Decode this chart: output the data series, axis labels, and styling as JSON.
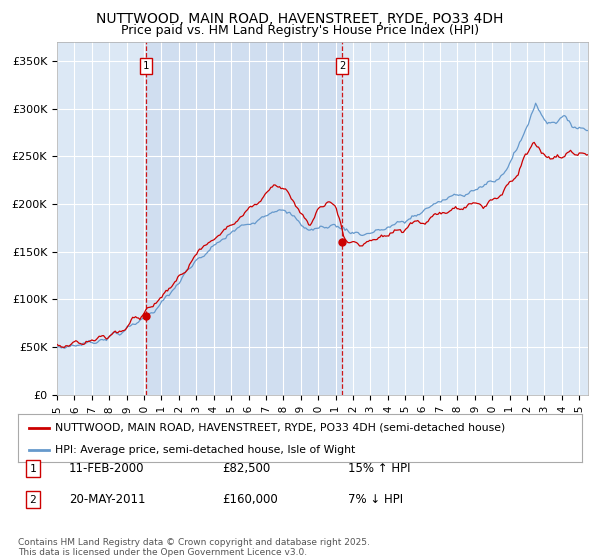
{
  "title": "NUTTWOOD, MAIN ROAD, HAVENSTREET, RYDE, PO33 4DH",
  "subtitle": "Price paid vs. HM Land Registry's House Price Index (HPI)",
  "legend_label_red": "NUTTWOOD, MAIN ROAD, HAVENSTREET, RYDE, PO33 4DH (semi-detached house)",
  "legend_label_blue": "HPI: Average price, semi-detached house, Isle of Wight",
  "sale1_date": "11-FEB-2000",
  "sale1_price": "£82,500",
  "sale1_hpi": "15% ↑ HPI",
  "sale1_x": 2000.12,
  "sale1_y": 82500,
  "sale2_date": "20-MAY-2011",
  "sale2_price": "£160,000",
  "sale2_hpi": "7% ↓ HPI",
  "sale2_x": 2011.38,
  "sale2_y": 160000,
  "footer": "Contains HM Land Registry data © Crown copyright and database right 2025.\nThis data is licensed under the Open Government Licence v3.0.",
  "ylim": [
    0,
    370000
  ],
  "xlim_start": 1995.0,
  "xlim_end": 2025.5,
  "background_color": "#dce8f5",
  "plot_bg_color": "#dce8f5",
  "red_color": "#cc0000",
  "blue_color": "#6699cc",
  "vline_color": "#cc0000",
  "grid_color": "#ffffff",
  "shade_color": "#c8d8ee",
  "title_fontsize": 10,
  "subtitle_fontsize": 9
}
